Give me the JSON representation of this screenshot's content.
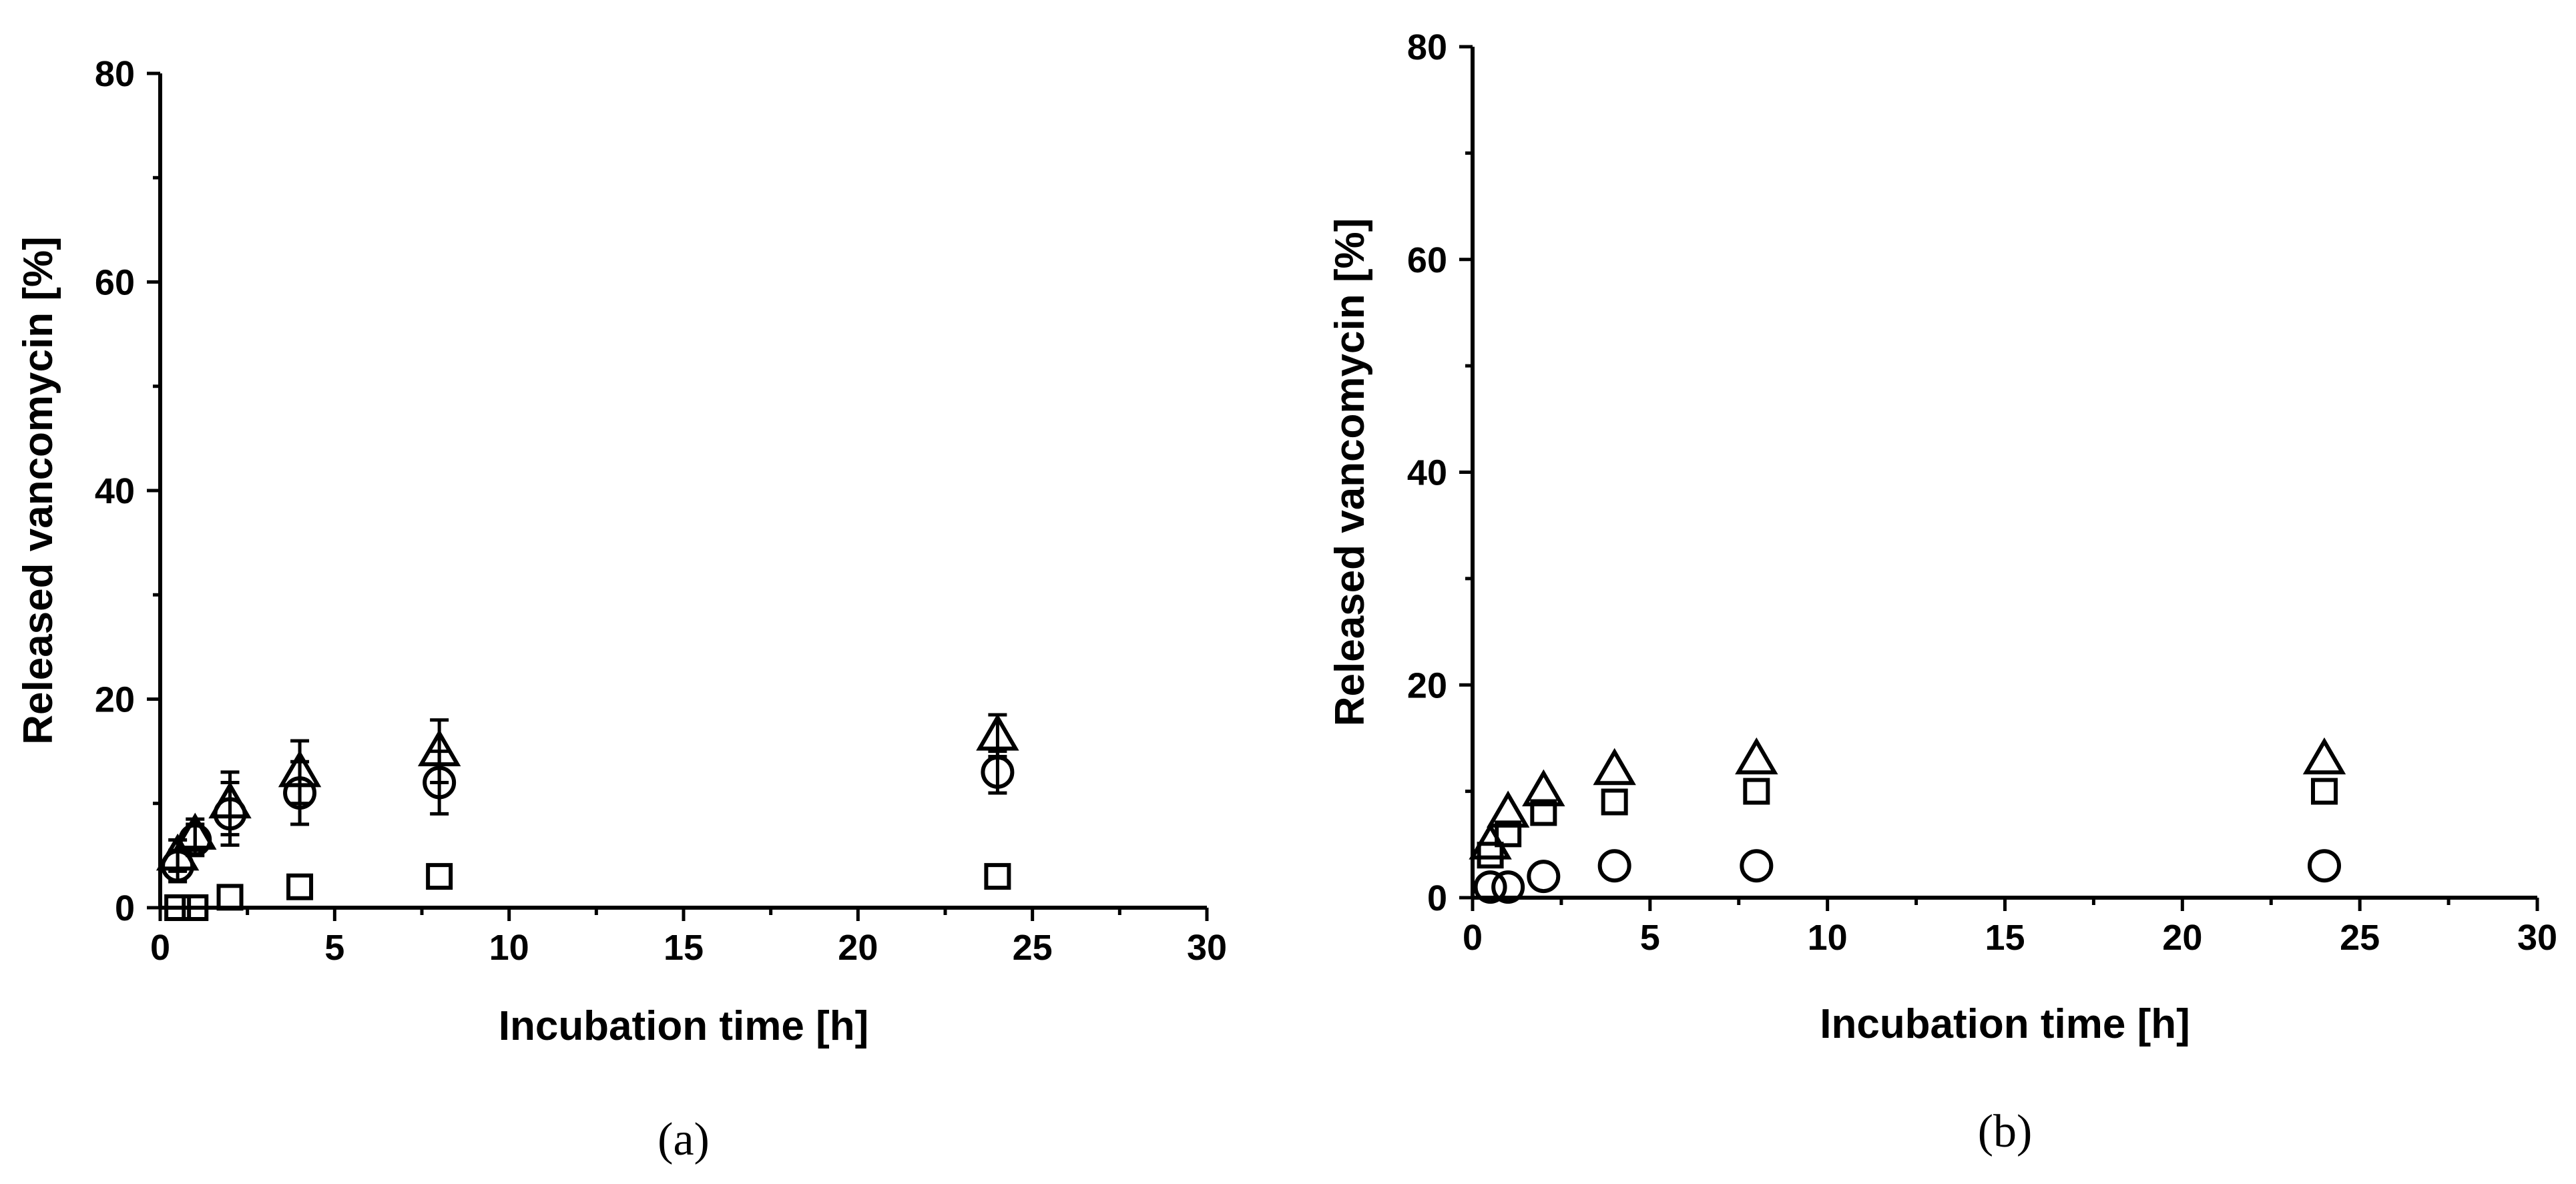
{
  "chart_data": [
    {
      "type": "scatter",
      "panel_label": "(a)",
      "xlabel": "Incubation time [h]",
      "ylabel": "Released vancomycin [%]",
      "xlim": [
        0,
        30
      ],
      "ylim": [
        0,
        80
      ],
      "xticks": [
        "0",
        "5",
        "10",
        "15",
        "20",
        "25",
        "30"
      ],
      "yticks": [
        "0",
        "20",
        "40",
        "60",
        "80"
      ],
      "grid": false,
      "series": [
        {
          "marker": "triangle",
          "x": [
            0.5,
            1,
            2,
            4,
            8,
            24
          ],
          "y": [
            5,
            7,
            10,
            13,
            15,
            16.5
          ],
          "err": [
            1.5,
            1.5,
            3,
            3,
            3,
            2
          ]
        },
        {
          "marker": "circle",
          "x": [
            0.5,
            1,
            2,
            4,
            8,
            24
          ],
          "y": [
            4,
            6.5,
            9,
            11,
            12,
            13
          ],
          "err": [
            1.5,
            1.5,
            3,
            3,
            3,
            2
          ]
        },
        {
          "marker": "square",
          "x": [
            0.5,
            1,
            2,
            4,
            8,
            24
          ],
          "y": [
            0,
            0,
            1,
            2,
            3,
            3
          ],
          "err": [
            0,
            0,
            0,
            0,
            0,
            0
          ]
        }
      ]
    },
    {
      "type": "scatter",
      "panel_label": "(b)",
      "xlabel": "Incubation time [h]",
      "ylabel": "Released vancomycin [%]",
      "xlim": [
        0,
        30
      ],
      "ylim": [
        0,
        80
      ],
      "xticks": [
        "0",
        "5",
        "10",
        "15",
        "20",
        "25",
        "30"
      ],
      "yticks": [
        "0",
        "20",
        "40",
        "60",
        "80"
      ],
      "grid": false,
      "series": [
        {
          "marker": "triangle",
          "x": [
            0.5,
            1,
            2,
            4,
            8,
            24
          ],
          "y": [
            5,
            8,
            10,
            12,
            13,
            13
          ],
          "err": [
            0,
            0,
            0,
            0,
            0,
            0
          ]
        },
        {
          "marker": "square",
          "x": [
            0.5,
            1,
            2,
            4,
            8,
            24
          ],
          "y": [
            4,
            6,
            8,
            9,
            10,
            10
          ],
          "err": [
            0,
            0,
            0,
            0,
            0,
            0
          ]
        },
        {
          "marker": "circle",
          "x": [
            0.5,
            1,
            2,
            4,
            8,
            24
          ],
          "y": [
            1,
            1,
            2,
            3,
            3,
            3
          ],
          "err": [
            0,
            0,
            0,
            0,
            0,
            0
          ]
        }
      ]
    }
  ]
}
